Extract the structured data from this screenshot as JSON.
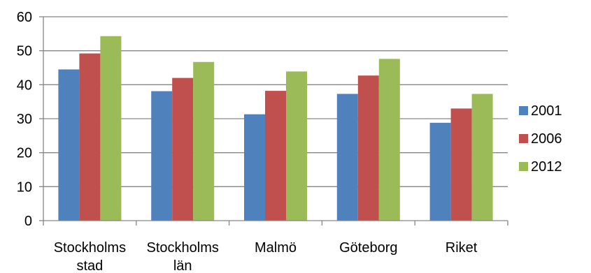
{
  "chart_data": {
    "type": "bar",
    "title": "",
    "xlabel": "",
    "ylabel": "",
    "ylim": [
      0,
      60
    ],
    "yticks": [
      0,
      10,
      20,
      30,
      40,
      50,
      60
    ],
    "grid": "horizontal",
    "legend_position": "right",
    "categories": [
      [
        "Stockholms",
        "stad"
      ],
      [
        "Stockholms",
        "län"
      ],
      [
        "Malmö"
      ],
      [
        "Göteborg"
      ],
      [
        "Riket"
      ]
    ],
    "series": [
      {
        "name": "2001",
        "color": "#4F81BD",
        "values": [
          44.5,
          38.1,
          31.3,
          37.3,
          28.8
        ]
      },
      {
        "name": "2006",
        "color": "#C0504D",
        "values": [
          49.2,
          42.0,
          38.2,
          42.7,
          33.0
        ]
      },
      {
        "name": "2012",
        "color": "#9BBB59",
        "values": [
          54.3,
          46.7,
          43.9,
          47.6,
          37.3
        ]
      }
    ]
  }
}
